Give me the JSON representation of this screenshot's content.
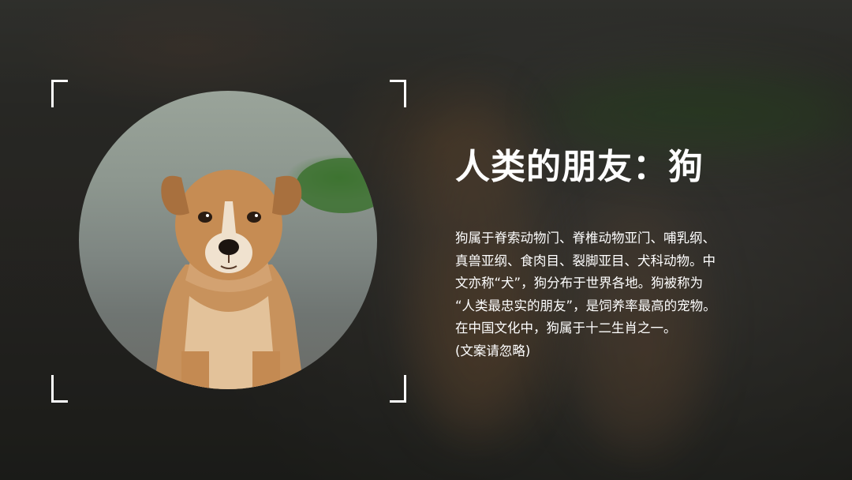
{
  "slide": {
    "title": "人类的朋友：狗",
    "body_lines": [
      "狗属于脊索动物门、脊椎动物亚门、哺乳纲、",
      "真兽亚纲、食肉目、裂脚亚目、犬科动物。中",
      "文亦称“犬”，狗分布于世界各地。狗被称为",
      "“人类最忠实的朋友”，是饲养率最高的宠物。",
      "在中国文化中，狗属于十二生肖之一。",
      "(文案请忽略)"
    ],
    "photo": {
      "subject": "puppy-photo"
    },
    "colors": {
      "text": "#ffffff",
      "bracket": "#ffffff",
      "puppy_fur": "#c08a55"
    }
  }
}
